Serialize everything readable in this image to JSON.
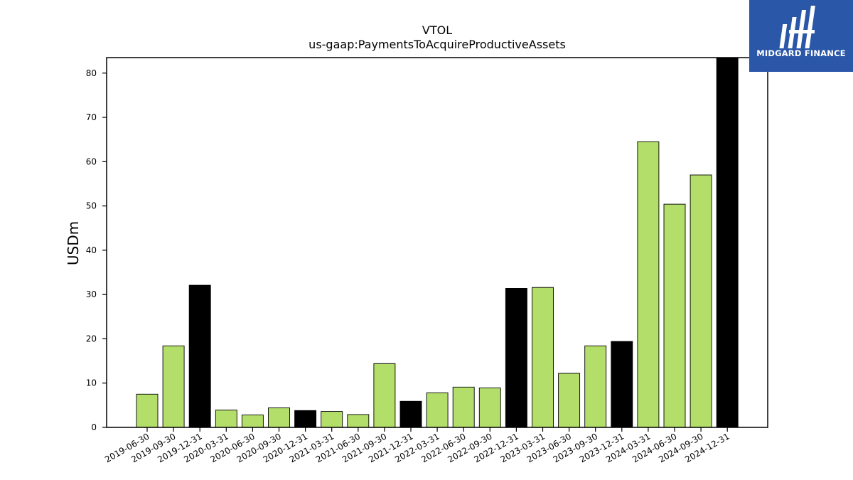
{
  "chart_data": {
    "type": "bar",
    "title": "VTOL",
    "subtitle": "us-gaap:PaymentsToAcquireProductiveAssets",
    "xlabel": "",
    "ylabel": "USDm",
    "ylim": [
      0,
      83.5
    ],
    "yticks": [
      0,
      10,
      20,
      30,
      40,
      50,
      60,
      70,
      80
    ],
    "grid": false,
    "colors": {
      "quarter": "#b3de69",
      "year_end": "#000000",
      "edge": "#000000"
    },
    "categories": [
      "2019-06-30",
      "2019-09-30",
      "2019-12-31",
      "2020-03-31",
      "2020-06-30",
      "2020-09-30",
      "2020-12-31",
      "2021-03-31",
      "2021-06-30",
      "2021-09-30",
      "2021-12-31",
      "2022-03-31",
      "2022-06-30",
      "2022-09-30",
      "2022-12-31",
      "2023-03-31",
      "2023-06-30",
      "2023-09-30",
      "2023-12-31",
      "2024-03-31",
      "2024-06-30",
      "2024-09-30",
      "2024-12-31"
    ],
    "values": [
      7.5,
      18.4,
      32.1,
      3.9,
      2.8,
      4.4,
      3.8,
      3.6,
      2.9,
      14.4,
      5.9,
      7.8,
      9.1,
      8.9,
      31.4,
      31.6,
      12.2,
      18.4,
      19.4,
      64.5,
      50.4,
      57.0,
      83.5
    ],
    "year_end": [
      false,
      false,
      true,
      false,
      false,
      false,
      true,
      false,
      false,
      false,
      true,
      false,
      false,
      false,
      true,
      false,
      false,
      false,
      true,
      false,
      false,
      false,
      true
    ]
  },
  "logo": {
    "text": "MIDGARD FINANCE"
  }
}
